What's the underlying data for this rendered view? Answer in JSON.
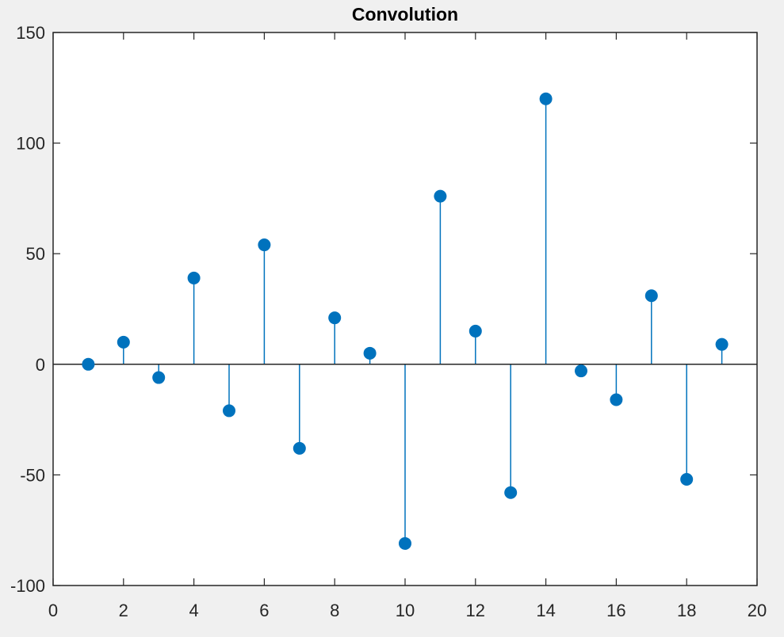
{
  "chart_data": {
    "type": "stem",
    "title": "Convolution",
    "xlabel": "",
    "ylabel": "",
    "xlim": [
      0,
      20
    ],
    "ylim": [
      -100,
      150
    ],
    "xticks": [
      0,
      2,
      4,
      6,
      8,
      10,
      12,
      14,
      16,
      18,
      20
    ],
    "yticks": [
      -100,
      -50,
      0,
      50,
      100,
      150
    ],
    "grid": false,
    "baseline": 0,
    "x": [
      1,
      2,
      3,
      4,
      5,
      6,
      7,
      8,
      9,
      10,
      11,
      12,
      13,
      14,
      15,
      16,
      17,
      18,
      19
    ],
    "y": [
      0,
      10,
      -6,
      39,
      -21,
      54,
      -38,
      21,
      5,
      -81,
      76,
      15,
      -58,
      120,
      -3,
      -16,
      31,
      -52,
      9
    ],
    "colors": {
      "series": "#0072BD",
      "axes": "#262626",
      "background": "#ffffff",
      "figure": "#f0f0f0"
    }
  }
}
